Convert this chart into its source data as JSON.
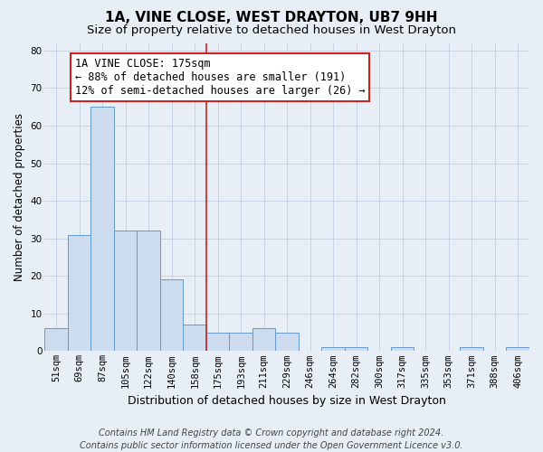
{
  "title": "1A, VINE CLOSE, WEST DRAYTON, UB7 9HH",
  "subtitle": "Size of property relative to detached houses in West Drayton",
  "xlabel": "Distribution of detached houses by size in West Drayton",
  "ylabel": "Number of detached properties",
  "bar_labels": [
    "51sqm",
    "69sqm",
    "87sqm",
    "105sqm",
    "122sqm",
    "140sqm",
    "158sqm",
    "175sqm",
    "193sqm",
    "211sqm",
    "229sqm",
    "246sqm",
    "264sqm",
    "282sqm",
    "300sqm",
    "317sqm",
    "335sqm",
    "353sqm",
    "371sqm",
    "388sqm",
    "406sqm"
  ],
  "bar_values": [
    6,
    31,
    65,
    32,
    32,
    19,
    7,
    5,
    5,
    6,
    5,
    0,
    1,
    1,
    0,
    1,
    0,
    0,
    1,
    0,
    1
  ],
  "bar_color": "#ccdcee",
  "bar_edge_color": "#6699cc",
  "annotation_line1": "1A VINE CLOSE: 175sqm",
  "annotation_line2": "← 88% of detached houses are smaller (191)",
  "annotation_line3": "12% of semi-detached houses are larger (26) →",
  "annotation_box_color": "#ffffff",
  "annotation_box_edge": "#cc2222",
  "vline_color": "#cc2222",
  "vline_x": 6.5,
  "ylim": [
    0,
    82
  ],
  "yticks": [
    0,
    10,
    20,
    30,
    40,
    50,
    60,
    70,
    80
  ],
  "grid_color": "#c8d4e4",
  "background_color": "#e8eef6",
  "footer_text": "Contains HM Land Registry data © Crown copyright and database right 2024.\nContains public sector information licensed under the Open Government Licence v3.0.",
  "title_fontsize": 11,
  "subtitle_fontsize": 9.5,
  "xlabel_fontsize": 9,
  "ylabel_fontsize": 8.5,
  "tick_fontsize": 7.5,
  "annotation_fontsize": 8.5,
  "footer_fontsize": 7
}
